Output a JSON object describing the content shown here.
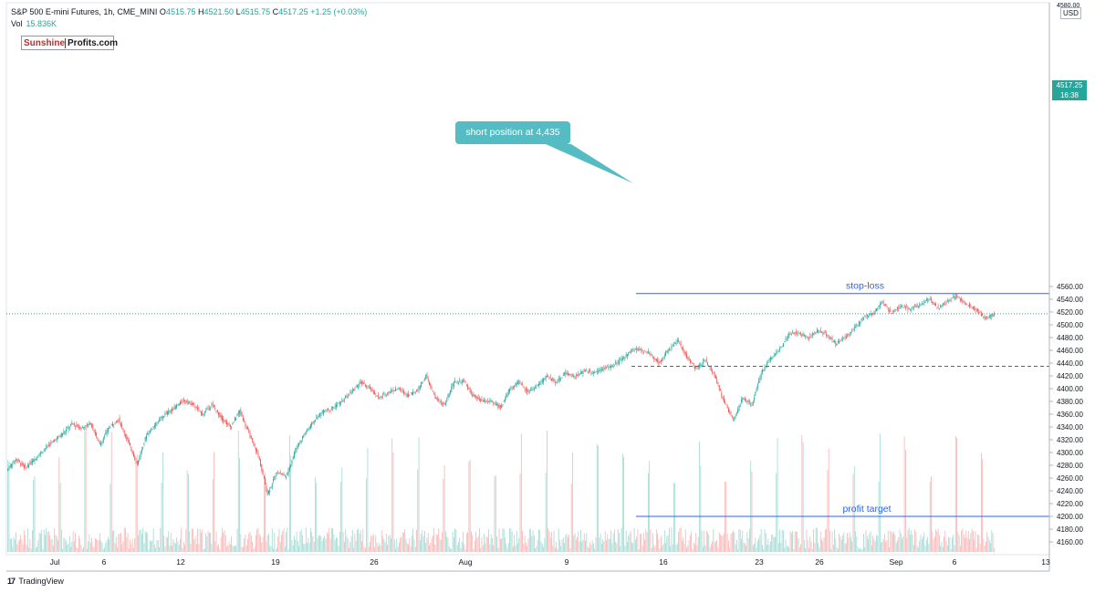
{
  "header": {
    "symbol": "S&P 500 E-mini Futures, 1h, CME_MINI",
    "o_label": "O",
    "o_value": "4515.75",
    "h_label": "H",
    "h_value": "4521.50",
    "l_label": "L",
    "l_value": "4515.75",
    "c_label": "C",
    "c_value": "4517.25",
    "change": "+1.25 (+0.03%)",
    "vol_label": "Vol",
    "vol_value": "15.836K"
  },
  "logo": {
    "part1": "Sunshine",
    "part2": "Profits.com"
  },
  "currency": "USD",
  "last_price": {
    "price": "4517.25",
    "time": "16:38"
  },
  "footer": {
    "brand": "TradingView",
    "icon": "tradingview-logo-icon"
  },
  "colors": {
    "up": "#26a69a",
    "down": "#ef5350",
    "line": "#2962ff",
    "callout": "#56bcc4"
  },
  "chart_data": {
    "type": "candlestick",
    "ylim": [
      4150,
      4580
    ],
    "yticks": [
      4160,
      4180,
      4200,
      4220,
      4240,
      4260,
      4280,
      4300,
      4320,
      4340,
      4360,
      4380,
      4400,
      4420,
      4440,
      4460,
      4480,
      4500,
      4520,
      4540,
      4560
    ],
    "ytick_labels": [
      "4160.00",
      "4180.00",
      "4200.00",
      "4220.00",
      "4240.00",
      "4260.00",
      "4280.00",
      "4300.00",
      "4320.00",
      "4340.00",
      "4360.00",
      "4380.00",
      "4400.00",
      "4420.00",
      "4440.00",
      "4460.00",
      "4480.00",
      "4500.00",
      "4520.00",
      "4540.00",
      "4560.00"
    ],
    "top_tick_label": "4580.00",
    "xticks": [
      "Jul",
      "6",
      "12",
      "19",
      "26",
      "Aug",
      "9",
      "16",
      "23",
      "26",
      "Sep",
      "6",
      "13"
    ],
    "annotations": {
      "stop_loss": {
        "label": "stop-loss",
        "price": 4549
      },
      "profit_target": {
        "label": "profit target",
        "price": 4200
      },
      "short_entry": {
        "label": "short position at 4,435",
        "price": 4435
      },
      "last_price_level": 4517.25
    },
    "price_path": [
      [
        0,
        4272
      ],
      [
        2,
        4290
      ],
      [
        4,
        4276
      ],
      [
        6,
        4290
      ],
      [
        8,
        4305
      ],
      [
        10,
        4318
      ],
      [
        12,
        4330
      ],
      [
        14,
        4345
      ],
      [
        16,
        4338
      ],
      [
        18,
        4346
      ],
      [
        20,
        4312
      ],
      [
        22,
        4340
      ],
      [
        24,
        4352
      ],
      [
        26,
        4318
      ],
      [
        28,
        4282
      ],
      [
        30,
        4328
      ],
      [
        32,
        4345
      ],
      [
        34,
        4360
      ],
      [
        36,
        4370
      ],
      [
        38,
        4382
      ],
      [
        40,
        4375
      ],
      [
        42,
        4360
      ],
      [
        44,
        4375
      ],
      [
        46,
        4355
      ],
      [
        48,
        4340
      ],
      [
        50,
        4365
      ],
      [
        52,
        4330
      ],
      [
        54,
        4295
      ],
      [
        56,
        4235
      ],
      [
        58,
        4270
      ],
      [
        60,
        4262
      ],
      [
        62,
        4305
      ],
      [
        64,
        4330
      ],
      [
        66,
        4350
      ],
      [
        68,
        4365
      ],
      [
        70,
        4370
      ],
      [
        72,
        4380
      ],
      [
        74,
        4395
      ],
      [
        76,
        4410
      ],
      [
        78,
        4400
      ],
      [
        80,
        4385
      ],
      [
        82,
        4395
      ],
      [
        84,
        4400
      ],
      [
        86,
        4390
      ],
      [
        88,
        4396
      ],
      [
        90,
        4420
      ],
      [
        92,
        4385
      ],
      [
        94,
        4375
      ],
      [
        96,
        4410
      ],
      [
        98,
        4412
      ],
      [
        100,
        4390
      ],
      [
        102,
        4380
      ],
      [
        104,
        4380
      ],
      [
        106,
        4370
      ],
      [
        108,
        4400
      ],
      [
        110,
        4410
      ],
      [
        112,
        4395
      ],
      [
        114,
        4405
      ],
      [
        116,
        4420
      ],
      [
        118,
        4410
      ],
      [
        120,
        4425
      ],
      [
        122,
        4418
      ],
      [
        124,
        4428
      ],
      [
        126,
        4425
      ],
      [
        128,
        4432
      ],
      [
        130,
        4435
      ],
      [
        132,
        4445
      ],
      [
        134,
        4460
      ],
      [
        136,
        4462
      ],
      [
        138,
        4455
      ],
      [
        140,
        4440
      ],
      [
        142,
        4460
      ],
      [
        144,
        4475
      ],
      [
        146,
        4450
      ],
      [
        148,
        4430
      ],
      [
        150,
        4445
      ],
      [
        152,
        4420
      ],
      [
        154,
        4380
      ],
      [
        156,
        4350
      ],
      [
        158,
        4385
      ],
      [
        160,
        4375
      ],
      [
        162,
        4425
      ],
      [
        164,
        4448
      ],
      [
        166,
        4462
      ],
      [
        168,
        4485
      ],
      [
        170,
        4488
      ],
      [
        172,
        4480
      ],
      [
        174,
        4490
      ],
      [
        176,
        4485
      ],
      [
        178,
        4470
      ],
      [
        180,
        4480
      ],
      [
        182,
        4495
      ],
      [
        184,
        4512
      ],
      [
        186,
        4518
      ],
      [
        188,
        4535
      ],
      [
        190,
        4518
      ],
      [
        192,
        4530
      ],
      [
        194,
        4525
      ],
      [
        196,
        4532
      ],
      [
        198,
        4540
      ],
      [
        200,
        4525
      ],
      [
        202,
        4538
      ],
      [
        204,
        4545
      ],
      [
        206,
        4532
      ],
      [
        208,
        4525
      ],
      [
        210,
        4510
      ],
      [
        212,
        4517
      ]
    ],
    "volume_range": [
      0,
      45000
    ]
  }
}
